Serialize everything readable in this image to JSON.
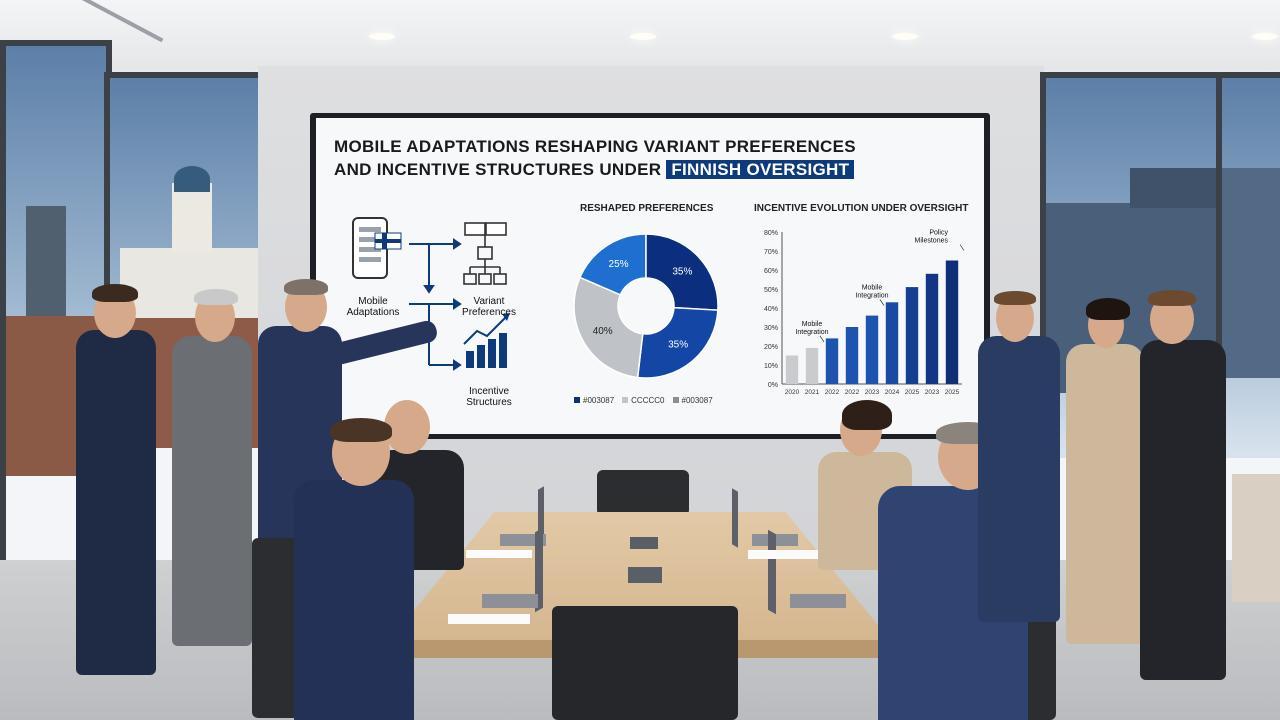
{
  "slide": {
    "title_line1": "MOBILE ADAPTATIONS RESHAPING VARIANT PREFERENCES",
    "title_line2_prefix": "AND INCENTIVE STRUCTURES UNDER",
    "title_line2_highlight": "FINNISH OVERSIGHT"
  },
  "diagram": {
    "node_mobile": "Mobile Adaptations",
    "node_variant": "Variant Preferences",
    "node_incentive": "Incentive Structures"
  },
  "chart_data": [
    {
      "type": "pie",
      "title": "RESHAPED PREFERENCES",
      "slices": [
        {
          "label": "25%",
          "value": 25,
          "color": "#1f6fd0"
        },
        {
          "label": "35%",
          "value": 35,
          "color": "#0b2f7e"
        },
        {
          "label": "35%",
          "value": 35,
          "color": "#1446a6"
        },
        {
          "label": "40%",
          "value": 40,
          "color": "#bfc2c7"
        }
      ],
      "legend": [
        "#003087",
        "CCCCC0",
        "#003087"
      ],
      "legend_colors": [
        "#0b2f7e",
        "#c4c4c4",
        "#8a8f96"
      ]
    },
    {
      "type": "bar",
      "title": "INCENTIVE EVOLUTION UNDER OVERSIGHT",
      "categories": [
        "2020",
        "2021",
        "2022",
        "2022",
        "2023",
        "2024",
        "2025",
        "2023",
        "2025"
      ],
      "values": [
        15,
        19,
        24,
        30,
        36,
        43,
        51,
        58,
        65
      ],
      "colors": [
        "#c9cbce",
        "#c9cbce",
        "#1e54b0",
        "#1e54b0",
        "#1e54b0",
        "#1a4aa2",
        "#163f91",
        "#123684",
        "#0f2f78"
      ],
      "ylim": [
        0,
        80
      ],
      "yticks": [
        "0%",
        "10%",
        "20%",
        "30%",
        "40%",
        "50%",
        "60%",
        "70%",
        "80%"
      ],
      "annotations": [
        {
          "text": "Mobile Integration"
        },
        {
          "text": "Mobile Integration"
        },
        {
          "text": "Policy Milestones"
        }
      ]
    }
  ]
}
